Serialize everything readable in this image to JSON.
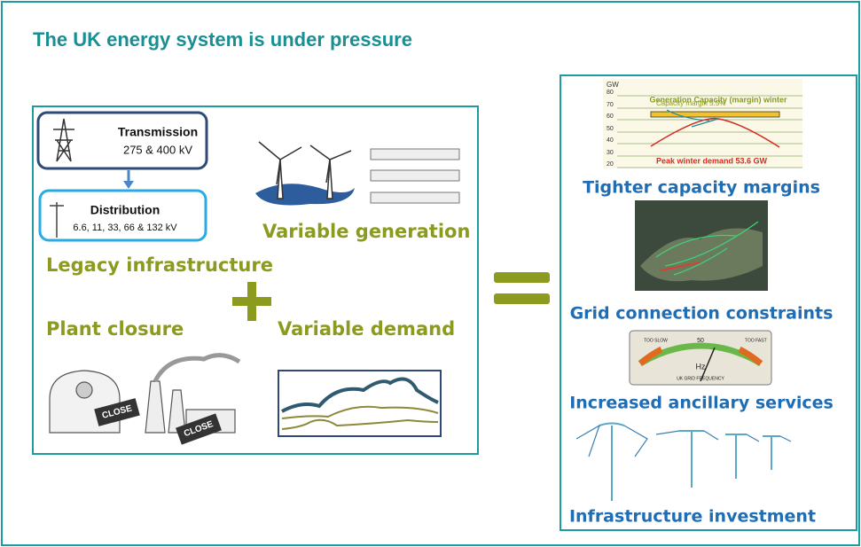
{
  "header": {
    "title": "The UK energy system is under pressure"
  },
  "left_panel": {
    "transmission": {
      "title": "Transmission",
      "voltage": "275 & 400 kV"
    },
    "distribution": {
      "title": "Distribution",
      "voltage": "6.6, 11, 33, 66 & 132 kV"
    },
    "labels": [
      "Variable generation",
      "Legacy infrastructure",
      "Plant closure",
      "Variable demand"
    ],
    "close_signs": [
      "CLOSE",
      "CLOSE"
    ]
  },
  "capacity_chart": {
    "unit": "GW",
    "title": "Generation Capacity (margin) winter",
    "ticks": [
      "80",
      "70",
      "60",
      "50",
      "40",
      "30",
      "20"
    ],
    "margin_label": "Capacity margin 5.5%",
    "demand_label": "Peak winter demand 53.6 GW"
  },
  "gauge": {
    "center": "50",
    "unit": "Hz",
    "caption": "UK GRID FREQUENCY",
    "slow": "TOO SLOW",
    "fast": "TOO FAST"
  },
  "right_panel": {
    "items": [
      "Tighter capacity margins",
      "Grid connection constraints",
      "Increased ancillary services",
      "Infrastructure investment"
    ]
  }
}
